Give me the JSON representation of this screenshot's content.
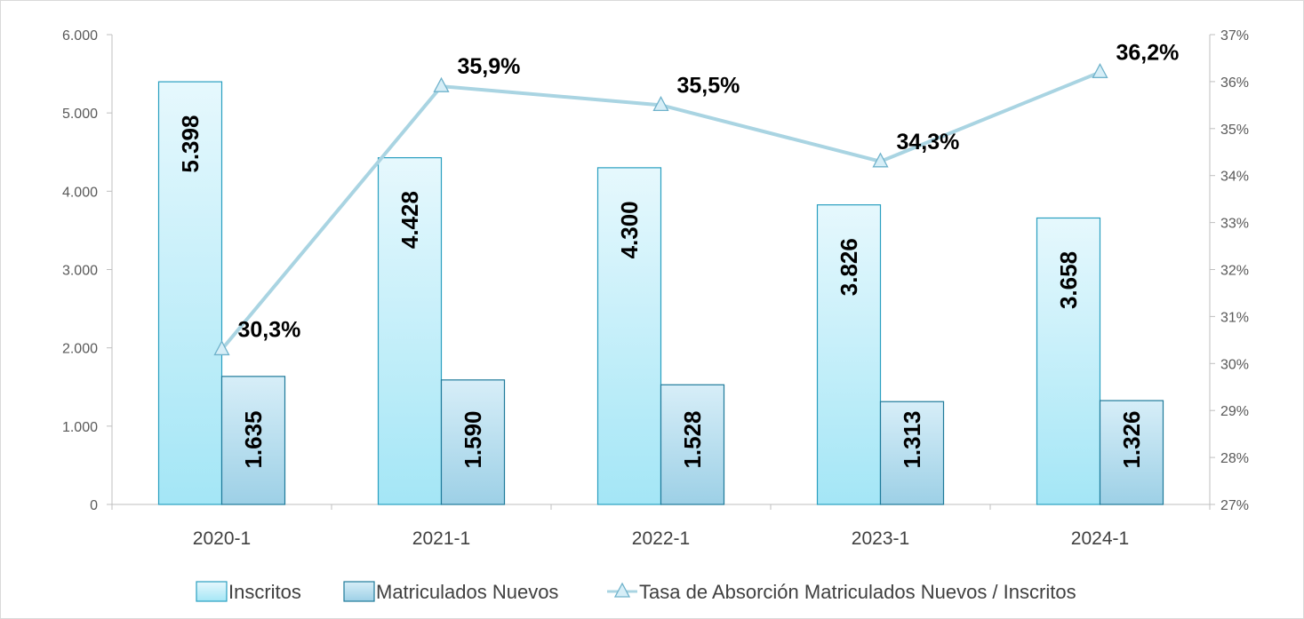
{
  "chart_data": {
    "type": "bar",
    "categories": [
      "2020-1",
      "2021-1",
      "2022-1",
      "2023-1",
      "2024-1"
    ],
    "series": [
      {
        "name": "Inscritos",
        "type": "bar",
        "axis": "left",
        "values": [
          5398,
          4428,
          4300,
          3826,
          3658
        ],
        "labels": [
          "5.398",
          "4.428",
          "4.300",
          "3.826",
          "3.658"
        ],
        "color": "#bdeefa"
      },
      {
        "name": "Matriculados Nuevos",
        "type": "bar",
        "axis": "left",
        "values": [
          1635,
          1590,
          1528,
          1313,
          1326
        ],
        "labels": [
          "1.635",
          "1.590",
          "1.528",
          "1.313",
          "1.326"
        ],
        "color": "#a8d8ec"
      },
      {
        "name": "Tasa de Absorción Matriculados Nuevos / Inscritos",
        "type": "line",
        "axis": "right",
        "marker": "triangle",
        "values": [
          30.3,
          35.9,
          35.5,
          34.3,
          36.2
        ],
        "labels": [
          "30,3%",
          "35,9%",
          "35,5%",
          "34,3%",
          "36,2%"
        ],
        "color": "#a9d4e2"
      }
    ],
    "y_left": {
      "min": 0,
      "max": 6000,
      "ticks": [
        0,
        1000,
        2000,
        3000,
        4000,
        5000,
        6000
      ],
      "tick_labels": [
        "0",
        "1.000",
        "2.000",
        "3.000",
        "4.000",
        "5.000",
        "6.000"
      ]
    },
    "y_right": {
      "min": 27,
      "max": 37,
      "ticks": [
        27,
        28,
        29,
        30,
        31,
        32,
        33,
        34,
        35,
        36,
        37
      ],
      "tick_labels": [
        "27%",
        "28%",
        "29%",
        "30%",
        "31%",
        "32%",
        "33%",
        "34%",
        "35%",
        "36%",
        "37%"
      ]
    },
    "grid": false,
    "legend_position": "bottom"
  }
}
